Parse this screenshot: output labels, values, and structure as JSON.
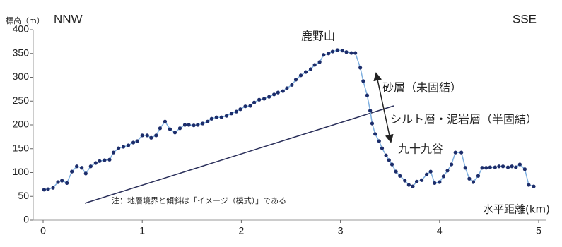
{
  "chart_data": {
    "type": "line",
    "y_axis_label": "標高（m）",
    "x_axis_label": "水平距離(km)",
    "left_direction": "NNW",
    "right_direction": "SSE",
    "annotations": [
      "鹿野山",
      "砂層（未固結）",
      "シルト層・泥岩層（半固結）",
      "九十九谷",
      "注：地層境界と傾斜は「イメージ（模式）」である"
    ],
    "xlim": [
      0,
      5
    ],
    "ylim": [
      0,
      400
    ],
    "xticks": [
      0,
      1,
      2,
      3,
      4,
      5
    ],
    "yticks": [
      0,
      50,
      100,
      150,
      200,
      250,
      300,
      350,
      400
    ],
    "color": "#7fb0e0",
    "marker_color": "#1c2d6b",
    "x": [
      0.01,
      0.05,
      0.1,
      0.15,
      0.19,
      0.24,
      0.29,
      0.34,
      0.39,
      0.43,
      0.48,
      0.53,
      0.57,
      0.62,
      0.67,
      0.71,
      0.76,
      0.81,
      0.86,
      0.91,
      0.95,
      1.0,
      1.05,
      1.09,
      1.14,
      1.18,
      1.23,
      1.28,
      1.33,
      1.38,
      1.43,
      1.47,
      1.52,
      1.56,
      1.61,
      1.66,
      1.7,
      1.75,
      1.8,
      1.85,
      1.9,
      1.95,
      1.99,
      2.04,
      2.09,
      2.13,
      2.18,
      2.23,
      2.28,
      2.33,
      2.37,
      2.42,
      2.46,
      2.51,
      2.55,
      2.6,
      2.65,
      2.7,
      2.74,
      2.79,
      2.83,
      2.88,
      2.92,
      2.97,
      3.02,
      3.06,
      3.11,
      3.15,
      3.2,
      3.23,
      3.27,
      3.3,
      3.32,
      3.35,
      3.39,
      3.42,
      3.46,
      3.49,
      3.52,
      3.56,
      3.6,
      3.65,
      3.69,
      3.73,
      3.77,
      3.82,
      3.87,
      3.91,
      3.95,
      4.0,
      4.04,
      4.08,
      4.12,
      4.16,
      4.22,
      4.26,
      4.3,
      4.34,
      4.39,
      4.43,
      4.47,
      4.51,
      4.56,
      4.6,
      4.64,
      4.69,
      4.73,
      4.77,
      4.81,
      4.86,
      4.9,
      4.95
    ],
    "values": [
      64,
      65,
      68,
      80,
      83,
      78,
      102,
      113,
      110,
      98,
      113,
      120,
      124,
      126,
      127,
      142,
      151,
      154,
      157,
      163,
      166,
      178,
      178,
      173,
      178,
      193,
      207,
      191,
      184,
      193,
      200,
      200,
      199,
      200,
      203,
      207,
      213,
      216,
      216,
      219,
      224,
      228,
      233,
      239,
      240,
      247,
      253,
      255,
      259,
      264,
      268,
      271,
      277,
      284,
      295,
      304,
      311,
      317,
      326,
      332,
      347,
      350,
      354,
      357,
      356,
      353,
      351,
      351,
      320,
      292,
      262,
      230,
      203,
      181,
      166,
      151,
      136,
      126,
      117,
      102,
      93,
      83,
      74,
      71,
      81,
      84,
      96,
      102,
      78,
      80,
      92,
      104,
      117,
      142,
      142,
      110,
      87,
      80,
      93,
      110,
      110,
      111,
      111,
      113,
      113,
      111,
      113,
      111,
      117,
      107,
      74,
      71
    ]
  }
}
